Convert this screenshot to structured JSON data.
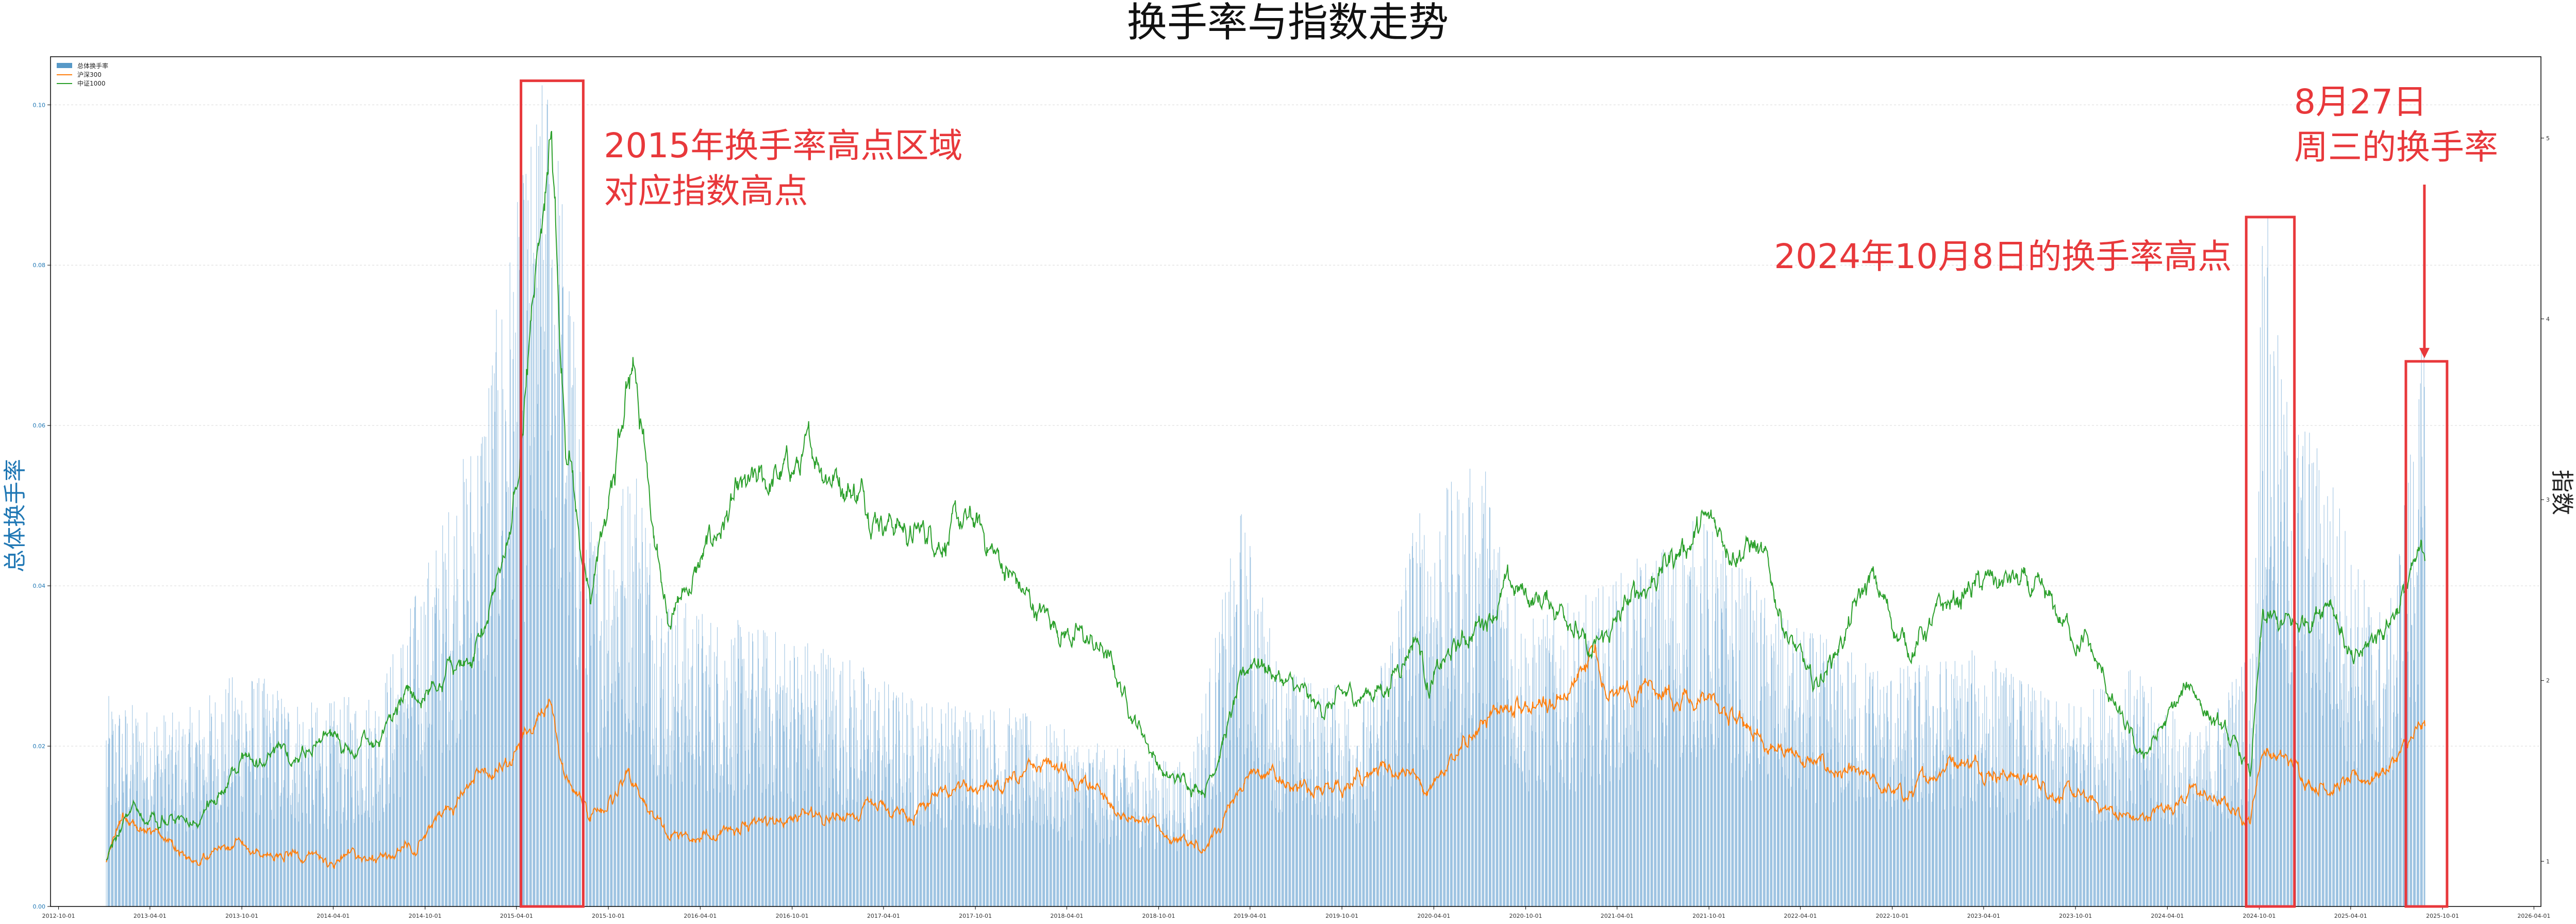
{
  "chart_data": {
    "type": "bar+line",
    "title": "换手率与指数走势",
    "ylabel_left": "总体换手率",
    "ylabel_right": "指数",
    "ylim_left": [
      0,
      0.106
    ],
    "ylim_right": [
      0.75,
      5.45
    ],
    "xlim": [
      "2012-09-15",
      "2026-04-15"
    ],
    "grid": "horizontal dotted",
    "legend_position": "top-left",
    "yticks_left": [
      "0.00",
      "0.02",
      "0.04",
      "0.06",
      "0.08",
      "0.10"
    ],
    "yticks_right": [
      "1",
      "2",
      "3",
      "4",
      "5"
    ],
    "xticks": [
      "2012-10-01",
      "2013-04-01",
      "2013-10-01",
      "2014-04-01",
      "2014-10-01",
      "2015-04-01",
      "2015-10-01",
      "2016-04-01",
      "2016-10-01",
      "2017-04-01",
      "2017-10-01",
      "2018-04-01",
      "2018-10-01",
      "2019-04-01",
      "2019-10-01",
      "2020-04-01",
      "2020-10-01",
      "2021-04-01",
      "2021-10-01",
      "2022-04-01",
      "2022-10-01",
      "2023-04-01",
      "2023-10-01",
      "2024-04-01",
      "2024-10-01",
      "2025-04-01",
      "2025-10-01",
      "2026-04-01"
    ],
    "turnover_range": [
      "2013-01-04",
      "2025-08-27"
    ],
    "turnover_profile": [
      [
        "2013-01-04",
        0.022
      ],
      [
        "2013-06-01",
        0.02
      ],
      [
        "2013-10-01",
        0.025
      ],
      [
        "2014-03-01",
        0.021
      ],
      [
        "2014-07-01",
        0.023
      ],
      [
        "2014-11-01",
        0.04
      ],
      [
        "2015-01-15",
        0.052
      ],
      [
        "2015-03-20",
        0.07
      ],
      [
        "2015-05-20",
        0.086
      ],
      [
        "2015-06-10",
        0.09
      ],
      [
        "2015-07-10",
        0.07
      ],
      [
        "2015-09-01",
        0.04
      ],
      [
        "2015-12-01",
        0.048
      ],
      [
        "2016-01-15",
        0.033
      ],
      [
        "2016-06-01",
        0.03
      ],
      [
        "2016-12-01",
        0.028
      ],
      [
        "2017-06-01",
        0.022
      ],
      [
        "2017-12-01",
        0.021
      ],
      [
        "2018-06-01",
        0.017
      ],
      [
        "2018-12-01",
        0.015
      ],
      [
        "2019-03-15",
        0.042
      ],
      [
        "2019-06-01",
        0.025
      ],
      [
        "2019-12-01",
        0.022
      ],
      [
        "2020-02-20",
        0.041
      ],
      [
        "2020-07-10",
        0.047
      ],
      [
        "2020-10-01",
        0.03
      ],
      [
        "2021-01-15",
        0.032
      ],
      [
        "2021-07-01",
        0.038
      ],
      [
        "2021-09-15",
        0.041
      ],
      [
        "2022-03-01",
        0.03
      ],
      [
        "2022-10-01",
        0.025
      ],
      [
        "2023-04-01",
        0.027
      ],
      [
        "2023-09-01",
        0.021
      ],
      [
        "2024-01-20",
        0.025
      ],
      [
        "2024-06-01",
        0.018
      ],
      [
        "2024-09-20",
        0.028
      ],
      [
        "2024-10-08",
        0.078
      ],
      [
        "2024-11-15",
        0.055
      ],
      [
        "2025-02-15",
        0.047
      ],
      [
        "2025-04-15",
        0.036
      ],
      [
        "2025-06-15",
        0.03
      ],
      [
        "2025-08-27",
        0.061
      ]
    ],
    "series": [
      {
        "name": "沪深300",
        "color": "#ff7f0e",
        "points": [
          [
            "2013-01-04",
            1.0
          ],
          [
            "2013-02-05",
            1.22
          ],
          [
            "2013-03-15",
            1.17
          ],
          [
            "2013-06-25",
            1.03
          ],
          [
            "2013-09-15",
            1.08
          ],
          [
            "2014-01-15",
            1.04
          ],
          [
            "2014-03-20",
            0.99
          ],
          [
            "2014-07-01",
            1.01
          ],
          [
            "2014-09-20",
            1.1
          ],
          [
            "2014-12-31",
            1.4
          ],
          [
            "2015-03-20",
            1.55
          ],
          [
            "2015-06-08",
            1.91
          ],
          [
            "2015-07-08",
            1.44
          ],
          [
            "2015-08-26",
            1.24
          ],
          [
            "2015-11-10",
            1.45
          ],
          [
            "2016-01-28",
            1.12
          ],
          [
            "2016-06-01",
            1.18
          ],
          [
            "2016-12-01",
            1.26
          ],
          [
            "2017-06-01",
            1.28
          ],
          [
            "2017-12-01",
            1.43
          ],
          [
            "2018-01-25",
            1.58
          ],
          [
            "2018-06-01",
            1.36
          ],
          [
            "2018-10-15",
            1.12
          ],
          [
            "2019-01-03",
            1.1
          ],
          [
            "2019-04-10",
            1.52
          ],
          [
            "2019-08-10",
            1.37
          ],
          [
            "2019-12-31",
            1.53
          ],
          [
            "2020-03-20",
            1.38
          ],
          [
            "2020-07-10",
            1.77
          ],
          [
            "2020-12-31",
            1.95
          ],
          [
            "2021-02-18",
            2.21
          ],
          [
            "2021-03-10",
            1.91
          ],
          [
            "2021-06-01",
            2.0
          ],
          [
            "2021-10-01",
            1.87
          ],
          [
            "2022-03-15",
            1.58
          ],
          [
            "2022-10-31",
            1.35
          ],
          [
            "2023-01-28",
            1.59
          ],
          [
            "2023-06-01",
            1.48
          ],
          [
            "2023-10-23",
            1.33
          ],
          [
            "2024-02-05",
            1.22
          ],
          [
            "2024-05-20",
            1.39
          ],
          [
            "2024-09-13",
            1.24
          ],
          [
            "2024-10-08",
            1.64
          ],
          [
            "2025-01-13",
            1.45
          ],
          [
            "2025-04-08",
            1.42
          ],
          [
            "2025-06-15",
            1.53
          ],
          [
            "2025-08-27",
            1.72
          ]
        ]
      },
      {
        "name": "中证1000",
        "color": "#2ca02c",
        "points": [
          [
            "2013-01-04",
            1.0
          ],
          [
            "2013-03-01",
            1.29
          ],
          [
            "2013-06-25",
            1.2
          ],
          [
            "2013-10-01",
            1.55
          ],
          [
            "2014-01-15",
            1.57
          ],
          [
            "2014-03-10",
            1.7
          ],
          [
            "2014-05-20",
            1.56
          ],
          [
            "2014-09-01",
            1.9
          ],
          [
            "2014-12-31",
            2.1
          ],
          [
            "2015-03-20",
            2.8
          ],
          [
            "2015-06-08",
            5.15
          ],
          [
            "2015-07-08",
            3.4
          ],
          [
            "2015-08-26",
            2.4
          ],
          [
            "2015-11-20",
            3.75
          ],
          [
            "2016-01-28",
            2.3
          ],
          [
            "2016-06-01",
            2.95
          ],
          [
            "2016-11-20",
            3.25
          ],
          [
            "2017-06-01",
            2.8
          ],
          [
            "2017-10-01",
            2.85
          ],
          [
            "2018-01-25",
            2.4
          ],
          [
            "2018-06-15",
            2.15
          ],
          [
            "2018-10-18",
            1.45
          ],
          [
            "2019-01-03",
            1.43
          ],
          [
            "2019-04-10",
            2.15
          ],
          [
            "2019-08-10",
            1.83
          ],
          [
            "2019-12-31",
            1.98
          ],
          [
            "2020-02-25",
            2.28
          ],
          [
            "2020-03-23",
            1.98
          ],
          [
            "2020-08-20",
            2.5
          ],
          [
            "2020-12-31",
            2.4
          ],
          [
            "2021-02-05",
            2.1
          ],
          [
            "2021-06-01",
            2.55
          ],
          [
            "2021-09-15",
            2.85
          ],
          [
            "2021-12-31",
            2.75
          ],
          [
            "2022-04-26",
            1.93
          ],
          [
            "2022-08-20",
            2.55
          ],
          [
            "2022-10-31",
            2.18
          ],
          [
            "2023-03-01",
            2.5
          ],
          [
            "2023-06-01",
            2.55
          ],
          [
            "2023-10-23",
            2.2
          ],
          [
            "2024-02-05",
            1.55
          ],
          [
            "2024-05-20",
            1.97
          ],
          [
            "2024-09-13",
            1.48
          ],
          [
            "2024-10-08",
            2.3
          ],
          [
            "2024-12-15",
            2.28
          ],
          [
            "2025-02-20",
            2.52
          ],
          [
            "2025-04-08",
            2.05
          ],
          [
            "2025-06-15",
            2.35
          ],
          [
            "2025-08-27",
            2.68
          ]
        ]
      }
    ],
    "legend": [
      {
        "label": "总体换手率",
        "kind": "bar",
        "color": "#1f77b4"
      },
      {
        "label": "沪深300",
        "kind": "line",
        "color": "#ff7f0e"
      },
      {
        "label": "中证1000",
        "kind": "line",
        "color": "#2ca02c"
      }
    ],
    "annotations": [
      {
        "text_lines": [
          "2015年换手率高点区域",
          "对应指数高点"
        ],
        "box_x": [
          "2015-04-10",
          "2015-08-12"
        ],
        "box_top": 0.103
      },
      {
        "text_lines": [
          "2024年10月8日的换手率高点"
        ],
        "box_x": [
          "2024-09-05",
          "2024-12-10"
        ],
        "box_top": 0.086
      },
      {
        "text_lines": [
          "8月27日",
          "周三的换手率"
        ],
        "box_x": [
          "2025-07-20",
          "2025-10-10"
        ],
        "box_top": 0.068,
        "arrow": true
      }
    ],
    "colors": {
      "bar": "#7fb0d8",
      "bar_edge": "#5b9bd0",
      "annotation": "#e8383b"
    }
  }
}
